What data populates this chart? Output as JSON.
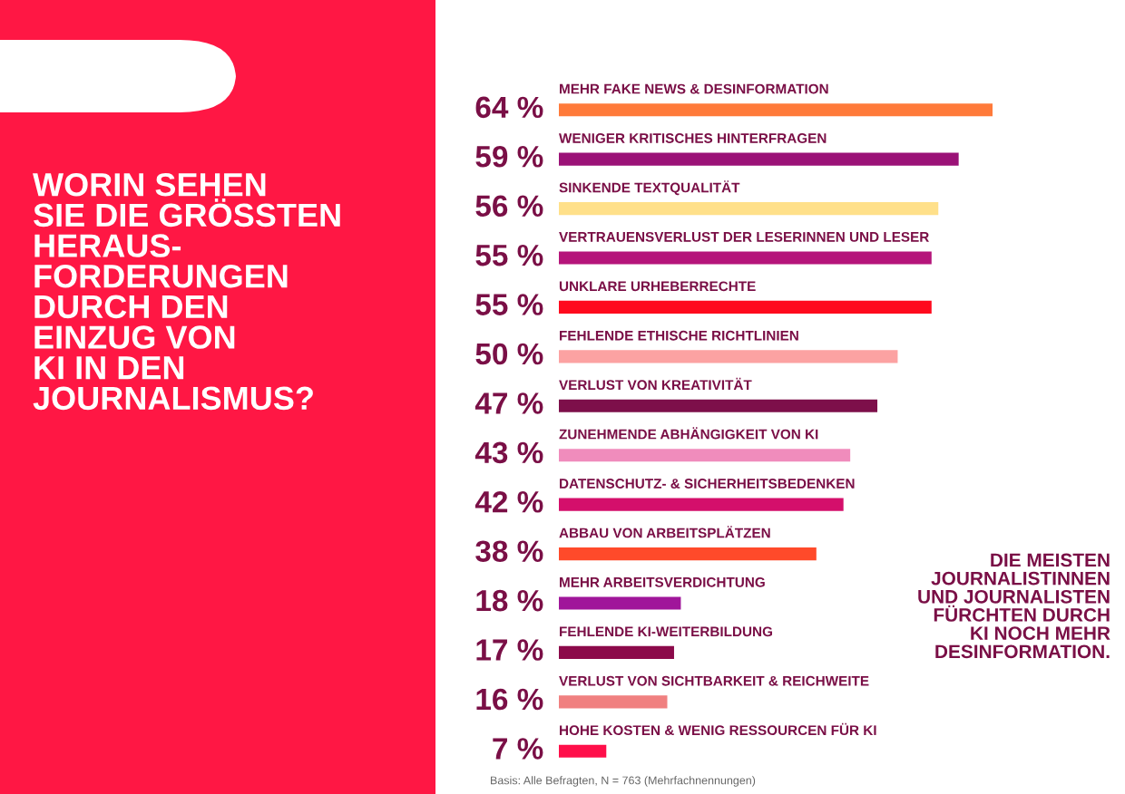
{
  "chart_data": {
    "type": "bar",
    "orientation": "horizontal",
    "title": "WORIN SEHEN\nSIE DIE GRÖSSTEN\nHERAUS-\nFORDERUNGEN\nDURCH DEN\nEINZUG VON\nKI IN DEN\nJOURNALISMUS?",
    "categories": [
      "MEHR FAKE NEWS & DESINFORMATION",
      "WENIGER KRITISCHES HINTERFRAGEN",
      "SINKENDE TEXTQUALITÄT",
      "VERTRAUENSVERLUST DER LESERINNEN UND LESER",
      "UNKLARE URHEBERRECHTE",
      "FEHLENDE ETHISCHE RICHTLINIEN",
      "VERLUST VON KREATIVITÄT",
      "ZUNEHMENDE ABHÄNGIGKEIT VON KI",
      "DATENSCHUTZ- & SICHERHEITSBEDENKEN",
      "ABBAU VON ARBEITSPLÄTZEN",
      "MEHR ARBEITSVERDICHTUNG",
      "FEHLENDE KI-WEITERBILDUNG",
      "VERLUST VON SICHTBARKEIT & REICHWEITE",
      "HOHE KOSTEN & WENIG RESSOURCEN FÜR KI"
    ],
    "values": [
      64,
      59,
      56,
      55,
      55,
      50,
      47,
      43,
      42,
      38,
      18,
      17,
      16,
      7
    ],
    "value_labels": [
      "64 %",
      "59 %",
      "56 %",
      "55 %",
      "55 %",
      "50 %",
      "47 %",
      "43 %",
      "42 %",
      "38 %",
      "18 %",
      "17 %",
      "16 %",
      "7 %"
    ],
    "colors": [
      "#ff7a3a",
      "#9b1277",
      "#ffe08a",
      "#b5157a",
      "#ff0a1e",
      "#fca2a2",
      "#7d0f4a",
      "#f08cbc",
      "#d40f6b",
      "#ff4a2a",
      "#a0169a",
      "#8c0a4a",
      "#f08080",
      "#ff0f4a"
    ],
    "annotations": [
      "DIE MEISTEN\nJOURNALISTINNEN\nUND JOURNALISTEN\nFÜRCHTEN DURCH\nKI NOCH MEHR\nDESINFORMATION.",
      "Basis: Alle Befragten, N = 763 (Mehrfachnennungen)"
    ]
  }
}
